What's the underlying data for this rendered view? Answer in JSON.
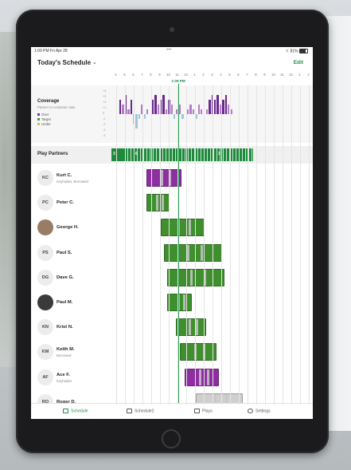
{
  "status": {
    "time": "1:09 PM",
    "date": "Fri Apr 28",
    "battery": "81%"
  },
  "header": {
    "title": "Today's Schedule",
    "edit": "Edit"
  },
  "now_label": "1:09 PM",
  "timeline": {
    "ticks": [
      "4",
      "5",
      "6",
      "7",
      "8",
      "9",
      "10",
      "11",
      "12",
      "1",
      "2",
      "3",
      "4",
      "5",
      "6",
      "7",
      "8",
      "9",
      "10",
      "11",
      "12",
      "1",
      "2"
    ]
  },
  "coverage": {
    "title": "Coverage",
    "subtitle": "Partner to customer ratio",
    "legend": [
      {
        "label": "Over",
        "color": "#8e2ea0"
      },
      {
        "label": "Target",
        "color": "#3c9a43"
      },
      {
        "label": "Under",
        "color": "#e0b84a"
      }
    ],
    "yticks": [
      "+4",
      "+3",
      "+2",
      "+1",
      "0",
      "-1",
      "-2",
      "-3",
      "-4"
    ]
  },
  "play_partners": {
    "label": "Play Partners",
    "counts": [
      "3",
      "6",
      "3"
    ]
  },
  "people": [
    {
      "initials": "KC",
      "name": "Kurt C.",
      "sub": "Keyholder, Borrowed",
      "photo": false
    },
    {
      "initials": "PC",
      "name": "Peter C.",
      "sub": "",
      "photo": false
    },
    {
      "initials": "",
      "name": "George H.",
      "sub": "",
      "photo": true
    },
    {
      "initials": "PS",
      "name": "Paul S.",
      "sub": "",
      "photo": false
    },
    {
      "initials": "DG",
      "name": "Dave G.",
      "sub": "",
      "photo": false
    },
    {
      "initials": "",
      "name": "Paul M.",
      "sub": "",
      "photo": true
    },
    {
      "initials": "KN",
      "name": "Krist N.",
      "sub": "",
      "photo": false
    },
    {
      "initials": "KM",
      "name": "Keith M.",
      "sub": "Borrowed",
      "photo": false
    },
    {
      "initials": "AF",
      "name": "Ace F.",
      "sub": "Keyholder",
      "photo": false
    },
    {
      "initials": "RO",
      "name": "Roger D.",
      "sub": "",
      "photo": false
    }
  ],
  "shifts": [
    {
      "start": 4.0,
      "end": 8.0,
      "color": "#8e2ea0"
    },
    {
      "start": 4.0,
      "end": 6.6,
      "color": "#3f8f2e"
    },
    {
      "start": 5.6,
      "end": 10.6,
      "color": "#3f8f2e"
    },
    {
      "start": 6.0,
      "end": 12.6,
      "color": "#3f8f2e"
    },
    {
      "start": 6.4,
      "end": 12.9,
      "color": "#3f8f2e"
    },
    {
      "start": 6.4,
      "end": 9.2,
      "color": "#3f8f2e"
    },
    {
      "start": 7.4,
      "end": 10.8,
      "color": "#3f8f2e"
    },
    {
      "start": 7.8,
      "end": 12.0,
      "color": "#3f8f2e"
    },
    {
      "start": 8.4,
      "end": 12.3,
      "color": "#8e2ea0"
    },
    {
      "start": 9.6,
      "end": 15.0,
      "color": "#cfcfcf"
    }
  ],
  "tabs": [
    {
      "label": "Schedule",
      "active": true
    },
    {
      "label": "Schedule2",
      "active": false
    },
    {
      "label": "Plays",
      "active": false
    },
    {
      "label": "Settings",
      "active": false
    }
  ]
}
